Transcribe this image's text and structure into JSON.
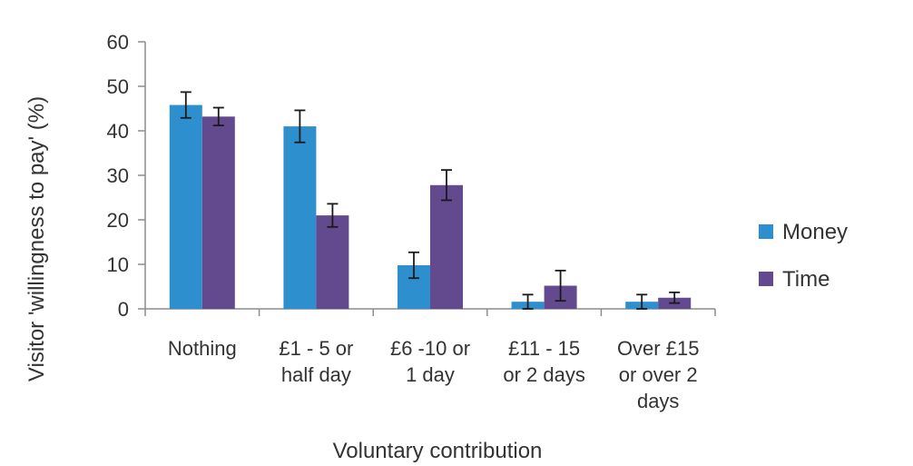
{
  "chart_data": {
    "type": "bar",
    "title": "",
    "xlabel": "Voluntary contribution",
    "ylabel": "Visitor 'willingness to pay' (%)",
    "ylim": [
      0,
      60
    ],
    "yticks": [
      0,
      10,
      20,
      30,
      40,
      50,
      60
    ],
    "categories": [
      "Nothing",
      "£1 - 5 or half day",
      "£6 -10 or 1 day",
      "£11 - 15 or 2 days",
      "Over £15 or over 2 days"
    ],
    "category_lines": [
      [
        "Nothing"
      ],
      [
        "£1 - 5 or",
        "half day"
      ],
      [
        "£6 -10 or",
        "1 day"
      ],
      [
        "£11 - 15",
        "or 2 days"
      ],
      [
        "Over £15",
        "or over 2",
        "days"
      ]
    ],
    "series": [
      {
        "name": "Money",
        "color": "#2e8fce",
        "values": [
          45.8,
          41.0,
          9.8,
          1.6,
          1.6
        ],
        "errors": [
          2.9,
          3.6,
          2.9,
          1.6,
          1.6
        ]
      },
      {
        "name": "Time",
        "color": "#634a8f",
        "values": [
          43.2,
          21.0,
          27.8,
          5.2,
          2.5
        ],
        "errors": [
          2.0,
          2.6,
          3.4,
          3.4,
          1.2
        ]
      }
    ],
    "legend": {
      "position": "right"
    },
    "grid": false
  }
}
